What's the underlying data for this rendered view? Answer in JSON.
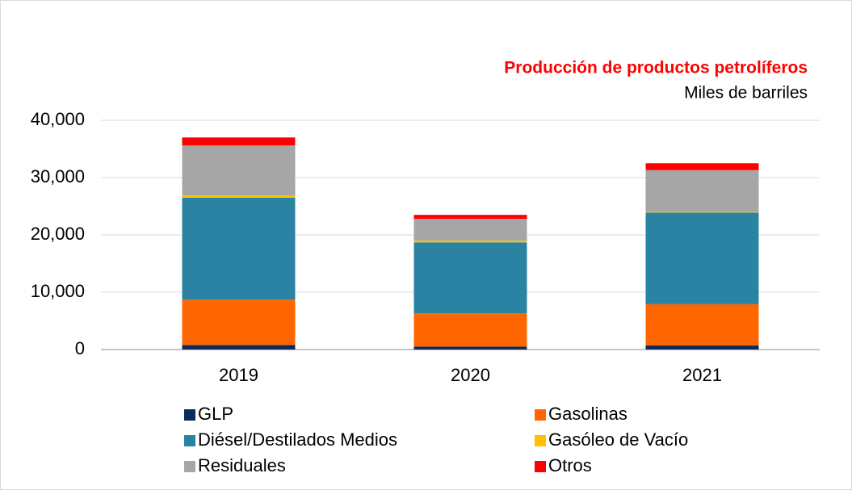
{
  "chart_data": {
    "type": "stacked_bar",
    "title": "Producción de productos petrolíferos",
    "subtitle": "Miles de barriles",
    "categories": [
      "2019",
      "2020",
      "2021"
    ],
    "series": [
      {
        "name": "GLP",
        "color": "#0c2a5c",
        "values": [
          800,
          500,
          700
        ]
      },
      {
        "name": "Gasolinas",
        "color": "#ff6600",
        "values": [
          7900,
          5800,
          7200
        ]
      },
      {
        "name": "Diésel/Destilados Medios",
        "color": "#2b83a3",
        "values": [
          17800,
          12400,
          16000
        ]
      },
      {
        "name": "Gasóleo de Vacío",
        "color": "#ffc000",
        "values": [
          400,
          300,
          100
        ]
      },
      {
        "name": "Residuales",
        "color": "#a6a6a6",
        "values": [
          8700,
          3800,
          7300
        ]
      },
      {
        "name": "Otros",
        "color": "#ff0000",
        "values": [
          1400,
          700,
          1200
        ]
      }
    ],
    "ylim": [
      0,
      40000
    ],
    "yticks": [
      0,
      {
        "value": 10000,
        "label": "10,000"
      },
      {
        "value": 20000,
        "label": "20,000"
      },
      {
        "value": 30000,
        "label": "30,000"
      },
      {
        "value": 40000,
        "label": "40,000"
      }
    ],
    "grid": true,
    "legend": "bottom"
  }
}
